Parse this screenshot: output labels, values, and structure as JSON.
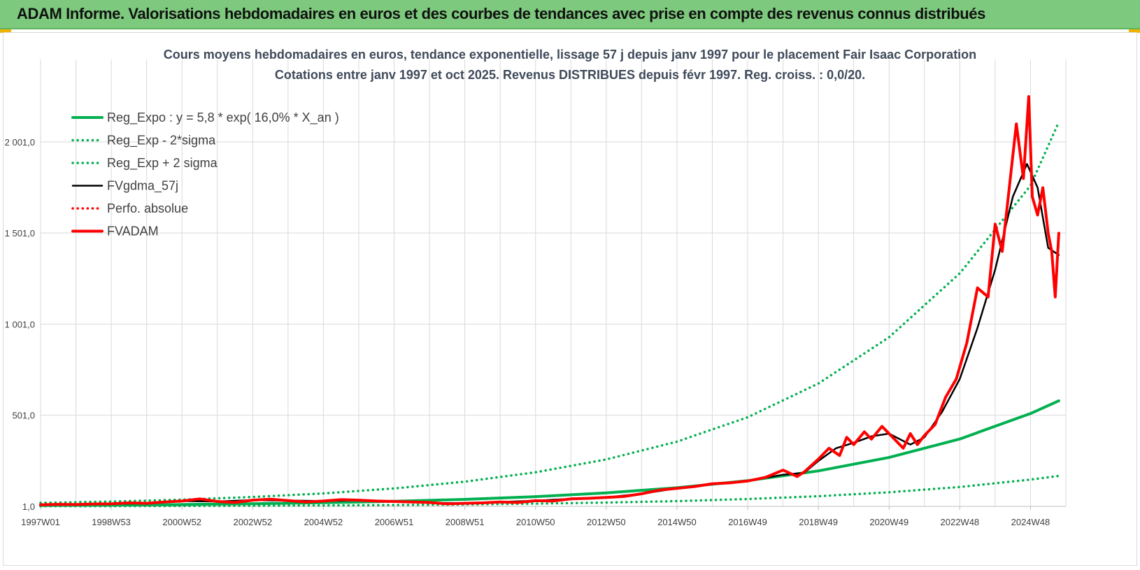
{
  "banner": {
    "title": "ADAM Informe. Valorisations hebdomadaires en euros et des courbes de tendances avec prise en compte des revenus connus distribués"
  },
  "colors": {
    "banner_bg": "#7dc97d",
    "reg_expo": "#00b050",
    "fvgdma": "#000000",
    "fvadam": "#ff0000",
    "grid": "#d9d9d9"
  },
  "chart_data": {
    "type": "line",
    "title": "Cours moyens hebdomadaires en euros, tendance exponentielle, lissage 57 j depuis janv 1997 pour le placement Fair Isaac Corporation",
    "subtitle": "Cotations entre janv 1997 et oct 2025. Revenus DISTRIBUES depuis févr 1997. Reg. croiss. : 0,0/20.",
    "xlabel": "",
    "ylabel": "",
    "x_tick_labels": [
      "1997W01",
      "1998W53",
      "2000W52",
      "2002W52",
      "2004W52",
      "2006W51",
      "2008W51",
      "2010W50",
      "2012W50",
      "2014W50",
      "2016W49",
      "2018W49",
      "2020W49",
      "2022W48",
      "2024W48"
    ],
    "x_tick_years": [
      1997.0,
      1999.0,
      2001.0,
      2003.0,
      2005.0,
      2007.0,
      2009.0,
      2011.0,
      2013.0,
      2015.0,
      2017.0,
      2019.0,
      2021.0,
      2023.0,
      2025.0
    ],
    "xlim": [
      1997.0,
      2026.0
    ],
    "y_tick_labels": [
      "1,0",
      "501,0",
      "1 001,0",
      "1 501,0",
      "2 001,0"
    ],
    "y_ticks": [
      1,
      501,
      1001,
      1501,
      2001
    ],
    "ylim": [
      1,
      2300
    ],
    "grid": true,
    "legend_position": "top-left",
    "series": [
      {
        "name": "Reg_Expo : y = 5,8 * exp( 16,0% *  X_an )",
        "style": "solid-thick",
        "color": "#00b050",
        "x": [
          1997.0,
          1999.0,
          2001.0,
          2003.0,
          2005.0,
          2007.0,
          2009.0,
          2011.0,
          2013.0,
          2015.0,
          2017.0,
          2019.0,
          2021.0,
          2023.0,
          2025.0,
          2025.8
        ],
        "y": [
          5.8,
          8.0,
          11.0,
          15.1,
          20.8,
          28.7,
          39.5,
          54.4,
          74.9,
          103.1,
          142.0,
          195.5,
          269.2,
          370.6,
          510.3,
          580.0
        ]
      },
      {
        "name": "Reg_Exp - 2*sigma",
        "style": "dotted",
        "color": "#00b050",
        "x": [
          1997.0,
          1999.0,
          2001.0,
          2003.0,
          2005.0,
          2007.0,
          2009.0,
          2011.0,
          2013.0,
          2015.0,
          2017.0,
          2019.0,
          2021.0,
          2023.0,
          2025.0,
          2025.8
        ],
        "y": [
          1.7,
          2.3,
          3.2,
          4.4,
          6.0,
          8.3,
          11.5,
          15.8,
          21.7,
          29.9,
          41.2,
          56.7,
          78.1,
          107.5,
          148.0,
          168.0
        ]
      },
      {
        "name": "Reg_Exp + 2 sigma",
        "style": "dotted",
        "color": "#00b050",
        "x": [
          1997.0,
          1999.0,
          2001.0,
          2003.0,
          2005.0,
          2007.0,
          2009.0,
          2011.0,
          2013.0,
          2015.0,
          2017.0,
          2019.0,
          2021.0,
          2023.0,
          2025.0,
          2025.8
        ],
        "y": [
          20.0,
          27.6,
          38.0,
          52.3,
          72.0,
          99.1,
          136.4,
          187.8,
          258.5,
          356.0,
          490.0,
          675.0,
          929.0,
          1280.0,
          1761.0,
          2110.0
        ]
      },
      {
        "name": "FVgdma_57j",
        "style": "solid",
        "color": "#000000",
        "x": [
          1997.0,
          1998.0,
          1999.0,
          2000.0,
          2001.0,
          2002.0,
          2003.0,
          2004.0,
          2005.0,
          2006.0,
          2007.0,
          2008.0,
          2009.0,
          2010.0,
          2011.0,
          2012.0,
          2013.0,
          2014.0,
          2015.0,
          2016.0,
          2017.0,
          2018.0,
          2018.6,
          2019.0,
          2019.5,
          2020.0,
          2020.5,
          2021.0,
          2021.6,
          2022.0,
          2022.5,
          2023.0,
          2023.5,
          2024.0,
          2024.5,
          2024.9,
          2025.2,
          2025.5,
          2025.8
        ],
        "y": [
          10,
          12,
          15,
          18,
          30,
          28,
          35,
          33,
          30,
          35,
          28,
          20,
          18,
          25,
          32,
          42,
          50,
          70,
          100,
          125,
          140,
          175,
          185,
          250,
          320,
          350,
          385,
          400,
          340,
          380,
          520,
          700,
          980,
          1300,
          1700,
          1880,
          1750,
          1420,
          1380
        ]
      },
      {
        "name": "Perfo. absolue",
        "style": "dotted",
        "color": "#ff0000",
        "x": [],
        "y": []
      },
      {
        "name": "FVADAM",
        "style": "solid-thick",
        "color": "#ff0000",
        "x": [
          1997.0,
          1997.5,
          1998.0,
          1998.5,
          1999.0,
          1999.5,
          2000.0,
          2000.5,
          2001.0,
          2001.5,
          2002.0,
          2002.5,
          2003.0,
          2003.5,
          2004.0,
          2004.5,
          2005.0,
          2005.5,
          2006.0,
          2006.5,
          2007.0,
          2007.5,
          2008.0,
          2008.5,
          2009.0,
          2009.5,
          2010.0,
          2010.5,
          2011.0,
          2011.5,
          2012.0,
          2012.5,
          2013.0,
          2013.5,
          2014.0,
          2014.5,
          2015.0,
          2015.5,
          2016.0,
          2016.5,
          2017.0,
          2017.5,
          2018.0,
          2018.4,
          2018.6,
          2019.0,
          2019.3,
          2019.6,
          2019.8,
          2020.0,
          2020.3,
          2020.5,
          2020.8,
          2021.0,
          2021.2,
          2021.4,
          2021.6,
          2021.8,
          2022.0,
          2022.3,
          2022.6,
          2022.9,
          2023.2,
          2023.5,
          2023.8,
          2024.0,
          2024.2,
          2024.4,
          2024.6,
          2024.8,
          2024.95,
          2025.05,
          2025.2,
          2025.35,
          2025.5,
          2025.6,
          2025.7,
          2025.8
        ],
        "y": [
          10,
          12,
          11,
          14,
          15,
          20,
          18,
          25,
          30,
          42,
          28,
          22,
          35,
          40,
          33,
          25,
          30,
          38,
          35,
          30,
          28,
          25,
          22,
          15,
          18,
          20,
          25,
          22,
          32,
          30,
          42,
          45,
          50,
          55,
          70,
          90,
          100,
          110,
          125,
          130,
          140,
          160,
          200,
          165,
          190,
          260,
          320,
          280,
          380,
          340,
          410,
          370,
          440,
          400,
          360,
          320,
          400,
          340,
          390,
          450,
          600,
          700,
          900,
          1200,
          1150,
          1550,
          1400,
          1750,
          2100,
          1800,
          2250,
          1700,
          1600,
          1750,
          1500,
          1400,
          1150,
          1500
        ]
      }
    ]
  }
}
